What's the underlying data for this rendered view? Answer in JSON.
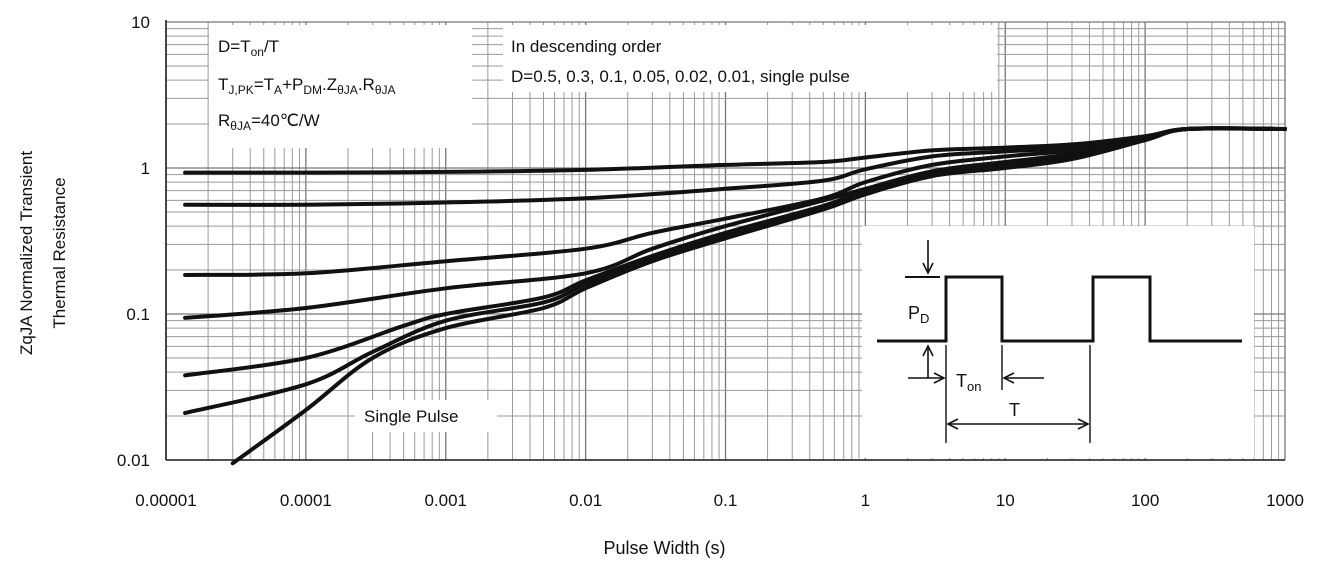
{
  "chart_data": {
    "type": "line",
    "xlabel": "Pulse Width (s)",
    "ylabel_lines": [
      "ZqJA Normalized Transient",
      "Thermal Resistance"
    ],
    "x_scale": "log",
    "y_scale": "log",
    "xlim": [
      1e-05,
      1000
    ],
    "ylim": [
      0.01,
      10
    ],
    "x_ticks": [
      "0.00001",
      "0.0001",
      "0.001",
      "0.01",
      "0.1",
      "1",
      "10",
      "100",
      "1000"
    ],
    "y_ticks": [
      "0.01",
      "0.1",
      "1",
      "10"
    ],
    "grid": true,
    "annotation_top_left": {
      "line1": {
        "base": "D=T",
        "sub": "on",
        "tail": "/T"
      },
      "line2_parts": [
        {
          "t": "T"
        },
        {
          "t": "J,PK",
          "sub": true
        },
        {
          "t": "=T"
        },
        {
          "t": "A",
          "sub": true
        },
        {
          "t": "+P"
        },
        {
          "t": "DM",
          "sub": true
        },
        {
          "t": ".Z"
        },
        {
          "t": "θJA",
          "sub": true
        },
        {
          "t": ".R"
        },
        {
          "t": "θJA",
          "sub": true
        }
      ],
      "line3_parts": [
        {
          "t": "R"
        },
        {
          "t": "θJA",
          "sub": true
        },
        {
          "t": "=40℃/W"
        }
      ]
    },
    "annotation_top_right": [
      "In descending order",
      "D=0.5, 0.3, 0.1, 0.05, 0.02, 0.01, single pulse"
    ],
    "single_pulse_label": "Single Pulse",
    "inset": {
      "pd_label": {
        "base": "P",
        "sub": "D"
      },
      "ton_label": {
        "base": "T",
        "sub": "on"
      },
      "t_label": "T"
    },
    "series": [
      {
        "name": "D=0.5",
        "x": [
          1.37e-05,
          0.0001,
          0.001,
          0.01,
          0.1,
          0.5,
          1,
          3,
          10,
          30,
          100,
          200,
          1000
        ],
        "y": [
          0.93,
          0.93,
          0.94,
          0.97,
          1.05,
          1.1,
          1.18,
          1.32,
          1.38,
          1.45,
          1.65,
          1.85,
          1.85
        ]
      },
      {
        "name": "D=0.3",
        "x": [
          1.37e-05,
          0.0001,
          0.001,
          0.01,
          0.1,
          0.5,
          1,
          3,
          10,
          30,
          100,
          200,
          1000
        ],
        "y": [
          0.56,
          0.56,
          0.58,
          0.62,
          0.72,
          0.82,
          0.98,
          1.2,
          1.3,
          1.38,
          1.62,
          1.85,
          1.85
        ]
      },
      {
        "name": "D=0.1",
        "x": [
          1.37e-05,
          0.0001,
          0.001,
          0.01,
          0.03,
          0.1,
          0.5,
          1,
          3,
          10,
          30,
          100,
          200,
          1000
        ],
        "y": [
          0.185,
          0.19,
          0.23,
          0.28,
          0.36,
          0.45,
          0.62,
          0.8,
          1.05,
          1.2,
          1.32,
          1.6,
          1.85,
          1.85
        ]
      },
      {
        "name": "D=0.05",
        "x": [
          1.37e-05,
          0.0001,
          0.001,
          0.01,
          0.03,
          0.1,
          0.5,
          1,
          3,
          10,
          30,
          100,
          200,
          1000
        ],
        "y": [
          0.094,
          0.11,
          0.15,
          0.19,
          0.28,
          0.4,
          0.6,
          0.72,
          0.95,
          1.1,
          1.25,
          1.6,
          1.85,
          1.85
        ]
      },
      {
        "name": "D=0.02",
        "x": [
          1.37e-05,
          0.0001,
          0.0005,
          0.001,
          0.005,
          0.01,
          0.03,
          0.1,
          0.5,
          1,
          3,
          10,
          30,
          100,
          200,
          1000
        ],
        "y": [
          0.038,
          0.05,
          0.083,
          0.1,
          0.13,
          0.17,
          0.25,
          0.36,
          0.55,
          0.7,
          0.92,
          1.05,
          1.2,
          1.58,
          1.85,
          1.85
        ]
      },
      {
        "name": "D=0.01",
        "x": [
          1.37e-05,
          0.0001,
          0.0003,
          0.001,
          0.005,
          0.01,
          0.03,
          0.1,
          0.5,
          1,
          3,
          10,
          30,
          100,
          200,
          1000
        ],
        "y": [
          0.021,
          0.033,
          0.055,
          0.09,
          0.12,
          0.16,
          0.24,
          0.34,
          0.53,
          0.68,
          0.9,
          1.02,
          1.18,
          1.56,
          1.85,
          1.85
        ]
      },
      {
        "name": "single pulse",
        "x": [
          3e-05,
          0.0001,
          0.0003,
          0.001,
          0.005,
          0.01,
          0.03,
          0.1,
          0.5,
          1,
          3,
          10,
          30,
          100,
          200,
          1000
        ],
        "y": [
          0.0095,
          0.022,
          0.05,
          0.08,
          0.11,
          0.15,
          0.23,
          0.33,
          0.52,
          0.66,
          0.88,
          1.0,
          1.15,
          1.55,
          1.85,
          1.85
        ]
      }
    ]
  }
}
